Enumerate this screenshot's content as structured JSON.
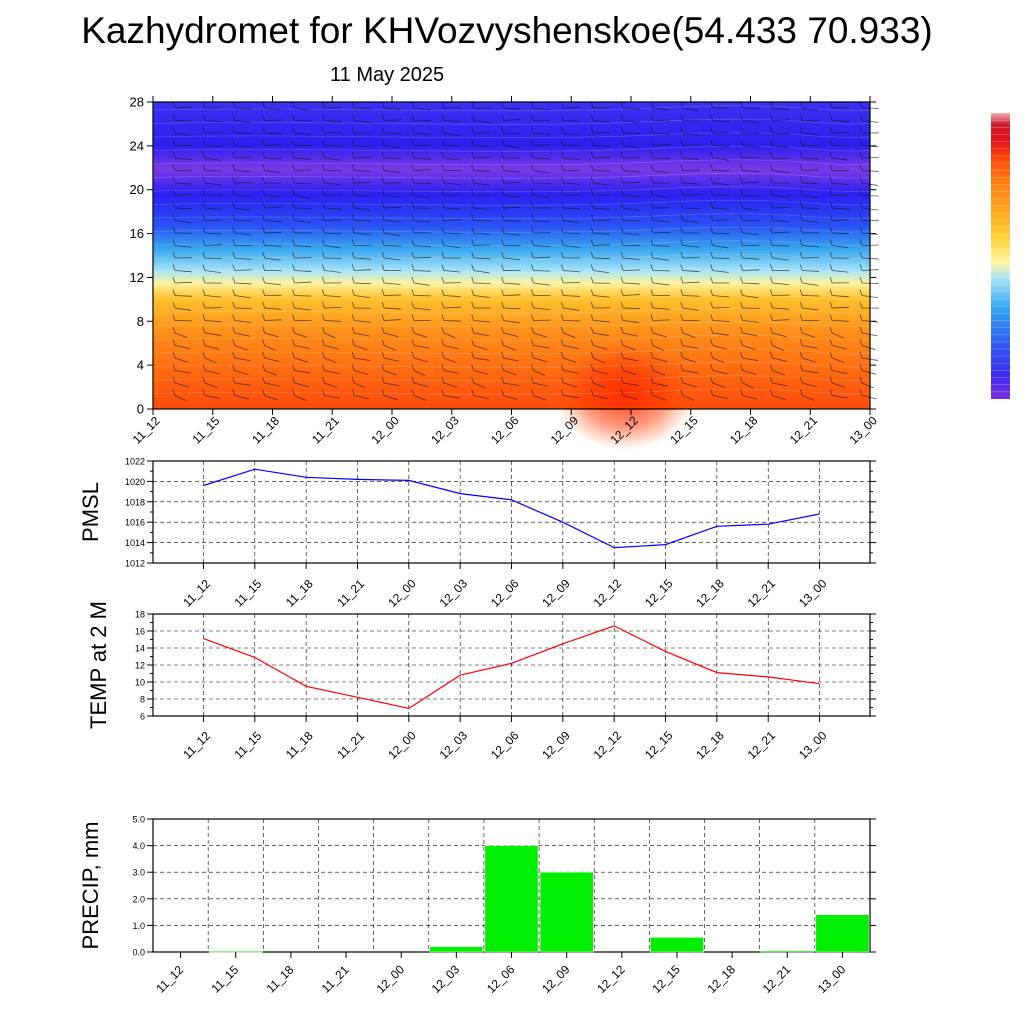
{
  "header": {
    "title": "Kazhydromet for KHVozvyshenskoe(54.433 70.933)",
    "date": "11 May 2025"
  },
  "time_labels": [
    "11_12",
    "11_15",
    "11_18",
    "11_21",
    "12_00",
    "12_03",
    "12_06",
    "12_09",
    "12_12",
    "12_15",
    "12_18",
    "12_21",
    "13_00"
  ],
  "chart_data": [
    {
      "id": "cross-section",
      "type": "heatmap",
      "title": "",
      "x": [
        "11_12",
        "11_15",
        "11_18",
        "11_21",
        "12_00",
        "12_03",
        "12_06",
        "12_09",
        "12_12",
        "12_15",
        "12_18",
        "12_21",
        "13_00"
      ],
      "ylim": [
        0,
        28
      ],
      "yticks": [
        0,
        4,
        8,
        12,
        16,
        20,
        24,
        28
      ],
      "description_levels": "temperature shading with wind barbs",
      "colorbar": [
        "#7f2fd9",
        "#3c2bf2",
        "#2f5df5",
        "#35a8f0",
        "#a7e2f8",
        "#fff6a0",
        "#ffd23a",
        "#ffa51e",
        "#ff7c10",
        "#ff4a0a",
        "#e8131b",
        "#cc1a30",
        "#f0b0b0"
      ]
    },
    {
      "id": "pmsl",
      "type": "line",
      "ylabel": "PMSL",
      "x": [
        "11_12",
        "11_15",
        "11_18",
        "11_21",
        "12_00",
        "12_03",
        "12_06",
        "12_09",
        "12_12",
        "12_15",
        "12_18",
        "12_21",
        "13_00"
      ],
      "series": [
        {
          "values": [
            1019.6,
            1021.2,
            1020.4,
            1020.2,
            1020.1,
            1018.8,
            1018.2,
            1016.0,
            1013.5,
            1013.8,
            1015.6,
            1015.8,
            1016.8
          ],
          "color": "#0000ff"
        }
      ],
      "ylim": [
        1012,
        1022
      ],
      "yticks": [
        1012,
        1014,
        1016,
        1018,
        1020,
        1022
      ],
      "grid": true
    },
    {
      "id": "temp",
      "type": "line",
      "ylabel": "TEMP at 2 M",
      "x": [
        "11_12",
        "11_15",
        "11_18",
        "11_21",
        "12_00",
        "12_03",
        "12_06",
        "12_09",
        "12_12",
        "12_15",
        "12_18",
        "12_21",
        "13_00"
      ],
      "series": [
        {
          "values": [
            15.1,
            12.9,
            9.5,
            8.2,
            6.9,
            10.8,
            12.2,
            14.5,
            16.6,
            13.6,
            11.1,
            10.6,
            9.8
          ],
          "color": "#ff0000"
        }
      ],
      "ylim": [
        6,
        18
      ],
      "yticks": [
        6,
        8,
        10,
        12,
        14,
        16,
        18
      ],
      "grid": true
    },
    {
      "id": "precip",
      "type": "bar",
      "ylabel": "PRECIP, mm",
      "categories": [
        "11_12",
        "11_15",
        "11_18",
        "11_21",
        "12_00",
        "12_03",
        "12_06",
        "12_09",
        "12_12",
        "12_15",
        "12_18",
        "12_21",
        "13_00"
      ],
      "values": [
        0.0,
        0.03,
        0.0,
        0.0,
        0.0,
        0.2,
        4.0,
        3.0,
        0.0,
        0.55,
        0.0,
        0.05,
        1.4
      ],
      "ylim": [
        0,
        5
      ],
      "yticks": [
        "0.0",
        "1.0",
        "2.0",
        "3.0",
        "4.0",
        "5.0"
      ],
      "color": "#00ee00",
      "grid": true
    }
  ]
}
